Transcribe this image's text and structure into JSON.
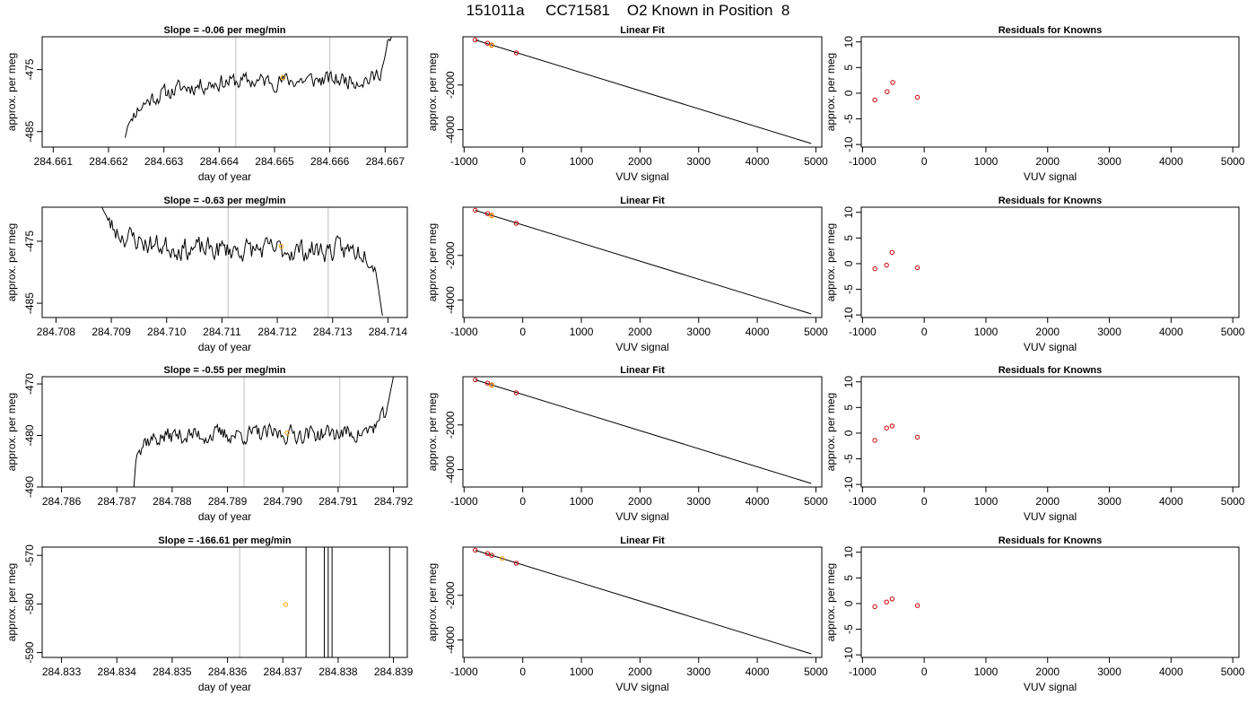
{
  "title": "151011a     CC71581    O2 Known in Position  8",
  "chart_data": [
    {
      "type": "line",
      "row": 0,
      "col": 0,
      "title": "Slope =  -0.06  per meg/min",
      "xlabel": "day of year",
      "ylabel": "approx. per meg",
      "xlim": [
        284.6608,
        284.6674
      ],
      "ylim": [
        -487.5,
        -469.7
      ],
      "xticks": [
        284.661,
        284.662,
        284.663,
        284.664,
        284.665,
        284.666,
        284.667
      ],
      "xtick_labels": [
        "284.661",
        "284.662",
        "284.663",
        "284.664",
        "284.665",
        "284.666",
        "284.667"
      ],
      "yticks": [
        -485,
        -475
      ],
      "ytick_labels": [
        "-485",
        "-475"
      ],
      "vlines": [
        284.6643,
        284.666
      ],
      "trace": {
        "start": 284.6623,
        "end": 284.6672,
        "base": -476.8,
        "noise": 1.2,
        "seed": 11,
        "anchors": [
          [
            284.6623,
            -486
          ],
          [
            284.66235,
            -484
          ],
          [
            284.6625,
            -481.5
          ],
          [
            284.6628,
            -479.5
          ],
          [
            284.6633,
            -478
          ],
          [
            284.664,
            -477
          ],
          [
            284.6668,
            -476.5
          ],
          [
            284.66695,
            -474.5
          ],
          [
            284.6671,
            -470
          ],
          [
            284.6672,
            -468
          ]
        ]
      },
      "marker": {
        "x": 284.66515,
        "y": -476.3
      }
    },
    {
      "type": "line",
      "row": 1,
      "col": 0,
      "title": "Slope =  -0.63  per meg/min",
      "xlabel": "day of year",
      "ylabel": "approx. per meg",
      "xlim": [
        284.70775,
        284.71435
      ],
      "ylim": [
        -487.3,
        -469.5
      ],
      "xticks": [
        284.708,
        284.709,
        284.71,
        284.711,
        284.712,
        284.713,
        284.714
      ],
      "xtick_labels": [
        "284.708",
        "284.709",
        "284.710",
        "284.711",
        "284.712",
        "284.713",
        "284.714"
      ],
      "yticks": [
        -485,
        -475
      ],
      "ytick_labels": [
        "-485",
        "-475"
      ],
      "vlines": [
        284.71111,
        284.71292
      ],
      "trace": {
        "start": 284.7088,
        "end": 284.7139,
        "base": -476.2,
        "noise": 1.6,
        "seed": 23,
        "anchors": [
          [
            284.7088,
            -469
          ],
          [
            284.709,
            -472.5
          ],
          [
            284.7092,
            -474
          ],
          [
            284.7097,
            -475.5
          ],
          [
            284.7105,
            -476.3
          ],
          [
            284.7136,
            -476.5
          ],
          [
            284.71375,
            -478
          ],
          [
            284.7139,
            -487
          ]
        ]
      },
      "marker": {
        "x": 284.71207,
        "y": -475.8
      }
    },
    {
      "type": "line",
      "row": 2,
      "col": 0,
      "title": "Slope =  -0.55  per meg/min",
      "xlabel": "day of year",
      "ylabel": "approx. per meg",
      "xlim": [
        284.78565,
        284.79225
      ],
      "ylim": [
        -490.0,
        -468.6
      ],
      "xticks": [
        284.786,
        284.787,
        284.788,
        284.789,
        284.79,
        284.791,
        284.792
      ],
      "xtick_labels": [
        "284.786",
        "284.787",
        "284.788",
        "284.789",
        "284.790",
        "284.791",
        "284.792"
      ],
      "yticks": [
        -490,
        -480,
        -470
      ],
      "ytick_labels": [
        "-490",
        "-480",
        "-470"
      ],
      "vlines": [
        284.7893,
        284.79103
      ],
      "trace": {
        "start": 284.7873,
        "end": 284.792,
        "base": -479.3,
        "noise": 1.5,
        "seed": 37,
        "anchors": [
          [
            284.7873,
            -491
          ],
          [
            284.78735,
            -484
          ],
          [
            284.7875,
            -481
          ],
          [
            284.788,
            -480
          ],
          [
            284.7915,
            -479.5
          ],
          [
            284.7918,
            -477
          ],
          [
            284.7919,
            -474
          ],
          [
            284.792,
            -468.5
          ]
        ]
      },
      "marker": {
        "x": 284.79008,
        "y": -479.5
      }
    },
    {
      "type": "line",
      "row": 3,
      "col": 0,
      "title": "Slope =  -166.61  per meg/min",
      "xlabel": "day of year",
      "ylabel": "approx. per meg",
      "xlim": [
        284.83265,
        284.83925
      ],
      "ylim": [
        -591.0,
        -568.3
      ],
      "xticks": [
        284.833,
        284.834,
        284.835,
        284.836,
        284.837,
        284.838,
        284.839
      ],
      "xtick_labels": [
        "284.833",
        "284.834",
        "284.835",
        "284.836",
        "284.837",
        "284.838",
        "284.839"
      ],
      "yticks": [
        -590,
        -580,
        -570
      ],
      "ytick_labels": [
        "-590",
        "-580",
        "-570"
      ],
      "vlines": [
        284.83622
      ],
      "black_vlines": [
        284.83742,
        284.83775,
        284.83782,
        284.83789,
        284.83893
      ],
      "marker": {
        "x": 284.83705,
        "y": -580.1
      }
    },
    {
      "type": "scatter",
      "col": 1,
      "title": "Linear Fit",
      "xlabel": "VUV signal",
      "ylabel": "approx. per meg",
      "xlim": [
        -1020,
        5100
      ],
      "ylim": [
        -4780,
        160
      ],
      "xticks": [
        -1000,
        0,
        1000,
        2000,
        3000,
        4000,
        5000
      ],
      "xtick_labels": [
        "-1000",
        "0",
        "1000",
        "2000",
        "3000",
        "4000",
        "5000"
      ],
      "yticks": [
        -4000,
        -2000
      ],
      "ytick_labels": [
        "-4000",
        "-2000"
      ],
      "points": [
        [
          -810,
          20
        ],
        [
          -600,
          -130
        ],
        [
          -530,
          -210
        ],
        [
          -110,
          -560
        ]
      ],
      "line": [
        [
          -810,
          20
        ],
        [
          4920,
          -4620
        ]
      ],
      "known_markers": [
        [
          -530,
          -230
        ],
        [
          -530,
          -230
        ],
        [
          -530,
          -230
        ],
        [
          -350,
          -350
        ]
      ]
    },
    {
      "type": "scatter",
      "col": 2,
      "title": "Residuals for Knowns",
      "xlabel": "VUV signal",
      "ylabel": "approx. per meg",
      "xlim": [
        -1020,
        5100
      ],
      "ylim": [
        -10.5,
        11
      ],
      "xticks": [
        -1000,
        0,
        1000,
        2000,
        3000,
        4000,
        5000
      ],
      "xtick_labels": [
        "-1000",
        "0",
        "1000",
        "2000",
        "3000",
        "4000",
        "5000"
      ],
      "yticks": [
        -10,
        -5,
        0,
        5,
        10
      ],
      "ytick_labels": [
        "-10",
        "-5",
        "0",
        "5",
        "10"
      ],
      "points": [
        [
          [
            -800,
            -1.3
          ],
          [
            -600,
            0.3
          ],
          [
            -510,
            2.1
          ],
          [
            -110,
            -0.8
          ]
        ],
        [
          [
            -800,
            -1.0
          ],
          [
            -610,
            -0.3
          ],
          [
            -520,
            2.2
          ],
          [
            -110,
            -0.8
          ]
        ],
        [
          [
            -800,
            -1.4
          ],
          [
            -610,
            1.0
          ],
          [
            -520,
            1.4
          ],
          [
            -110,
            -0.8
          ]
        ],
        [
          [
            -800,
            -0.6
          ],
          [
            -610,
            0.3
          ],
          [
            -520,
            0.9
          ],
          [
            -110,
            -0.4
          ]
        ]
      ]
    }
  ],
  "colors": {
    "trace": "#000000",
    "grid_vline": "#bebebe",
    "fit_point": "#cc0000",
    "known_marker": "#ffa500",
    "axes": "#000000"
  }
}
